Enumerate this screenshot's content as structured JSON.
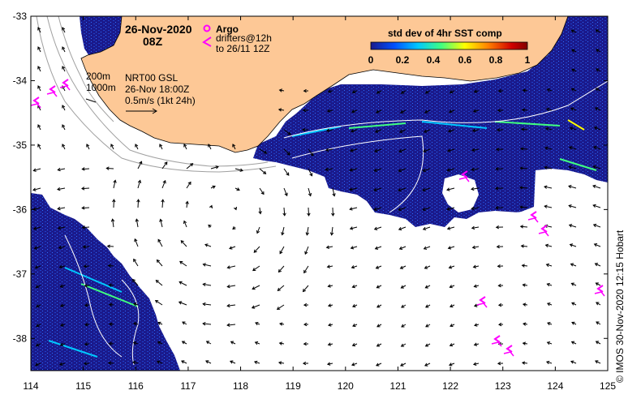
{
  "title": {
    "date": "26-Nov-2020",
    "time": "08Z"
  },
  "legend": {
    "argo_label": "Argo",
    "drifters_line1": "drifters@12h",
    "drifters_line2": "to 26/11 12Z",
    "argo_color": "#ff00ff"
  },
  "colorbar": {
    "title": "std dev of 4hr SST comp",
    "ticks": [
      "0",
      "0.2",
      "0.4",
      "0.6",
      "0.8",
      "1"
    ],
    "colors": [
      "#1a1a8c",
      "#0050ff",
      "#00c8ff",
      "#40ff80",
      "#ffff00",
      "#ff8000",
      "#d00000",
      "#800000"
    ]
  },
  "contours": {
    "label_200": "200m",
    "label_1000": "1000m"
  },
  "currents": {
    "line1": "NRT00 GSL",
    "line2": "26-Nov 18:00Z",
    "line3": "0.5m/s (1kt 24h)"
  },
  "axes": {
    "x_ticks": [
      "114",
      "115",
      "116",
      "117",
      "118",
      "119",
      "120",
      "121",
      "122",
      "123",
      "124",
      "125"
    ],
    "y_ticks": [
      "-33",
      "-34",
      "-35",
      "-36",
      "-37",
      "-38"
    ],
    "xlim": [
      114,
      125
    ],
    "ylim": [
      -38.5,
      -33
    ]
  },
  "credit": "© IMOS 30-Nov-2020 12:15 Hobart",
  "colors": {
    "land": "#fdc896",
    "sst_base": "#1a1a8c",
    "ocean": "#ffffff"
  }
}
